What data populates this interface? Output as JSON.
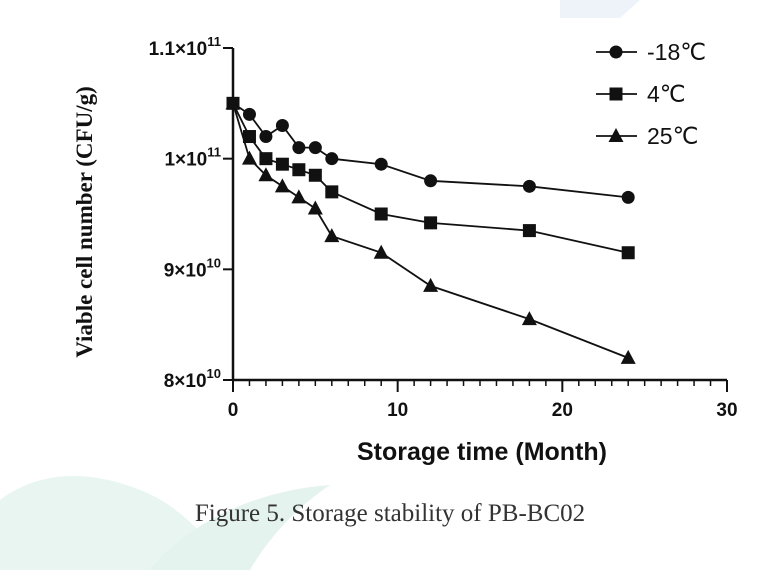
{
  "colors": {
    "ink": "#111111",
    "watermark": "#e4f3ee"
  },
  "chart_data": {
    "type": "line",
    "title": "",
    "xlabel": "Storage time (Month)",
    "ylabel": "Viable cell number (CFU/g)",
    "xlim": [
      0,
      30
    ],
    "ylim": [
      80000000000.0,
      110000000000.0
    ],
    "x_ticks": [
      0,
      10,
      20,
      30
    ],
    "y_ticks": [
      {
        "value": 80000000000.0,
        "mant": "8",
        "exp": "10"
      },
      {
        "value": 90000000000.0,
        "mant": "9",
        "exp": "10"
      },
      {
        "value": 100000000000.0,
        "mant": "1",
        "exp": "11"
      },
      {
        "value": 110000000000.0,
        "mant": "1.1",
        "exp": "11"
      }
    ],
    "grid": false,
    "legend_position": "top-right",
    "series": [
      {
        "name": "-18℃",
        "marker": "circle",
        "x": [
          0,
          1,
          2,
          3,
          4,
          5,
          6,
          9,
          12,
          18,
          24
        ],
        "y": [
          105000000000.0,
          104000000000.0,
          102000000000.0,
          103000000000.0,
          101000000000.0,
          101000000000.0,
          100000000000.0,
          99500000000.0,
          98000000000.0,
          97500000000.0,
          96500000000.0
        ]
      },
      {
        "name": "4℃",
        "marker": "square",
        "x": [
          0,
          1,
          2,
          3,
          4,
          5,
          6,
          9,
          12,
          18,
          24
        ],
        "y": [
          105000000000.0,
          102000000000.0,
          100000000000.0,
          99500000000.0,
          99000000000.0,
          98500000000.0,
          97000000000.0,
          95000000000.0,
          94200000000.0,
          93500000000.0,
          91500000000.0
        ]
      },
      {
        "name": "25℃",
        "marker": "triangle",
        "x": [
          0,
          1,
          2,
          3,
          4,
          5,
          6,
          9,
          12,
          18,
          24
        ],
        "y": [
          105000000000.0,
          100000000000.0,
          98500000000.0,
          97500000000.0,
          96500000000.0,
          95500000000.0,
          93000000000.0,
          91500000000.0,
          88500000000.0,
          85500000000.0,
          82000000000.0
        ]
      }
    ]
  },
  "caption": "Figure 5. Storage stability of PB-BC02"
}
